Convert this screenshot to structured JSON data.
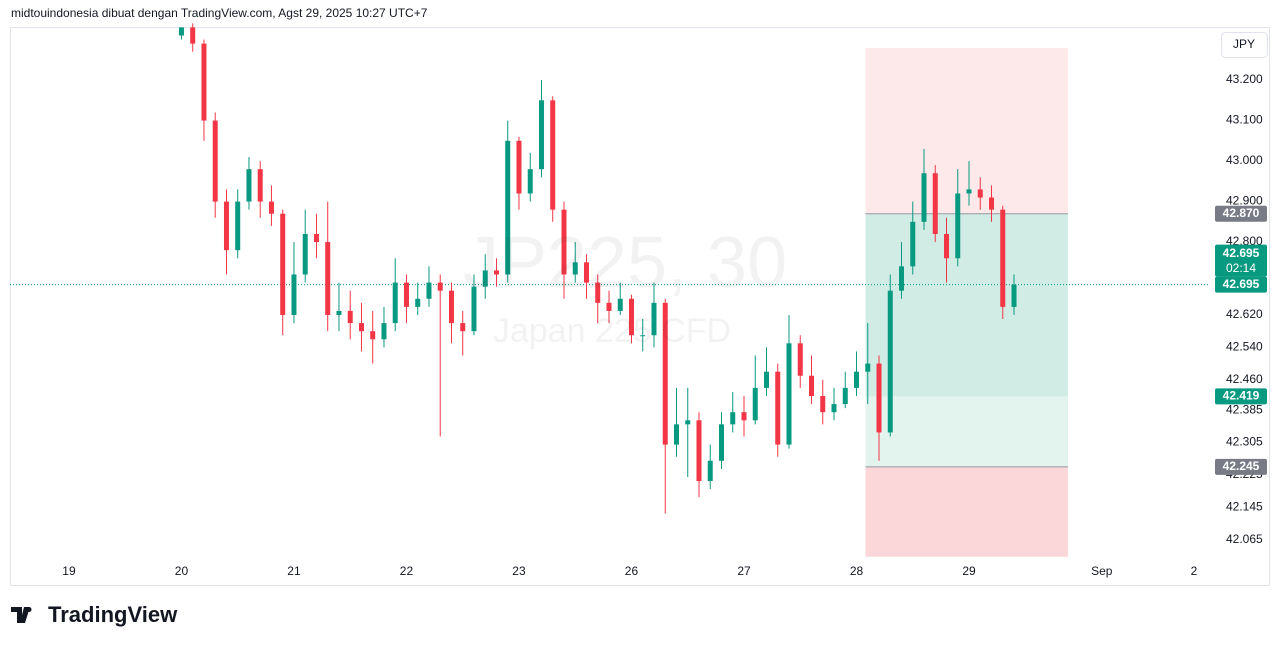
{
  "header": "midtouindonesia dibuat dengan TradingView.com, Agst 29, 2025 10:27 UTC+7",
  "brand": "TradingView",
  "chart_data": {
    "type": "candlestick",
    "currency": "JPY",
    "watermark": "JP225, 30",
    "watermark_subtitle": "Japan 225 CFD",
    "up_color": "#089981",
    "down_color": "#f23645",
    "xlim": [
      -0.524,
      10.142
    ],
    "ylim": [
      42.02,
      43.331
    ],
    "xticks": [
      {
        "value": 0,
        "label": "19"
      },
      {
        "value": 1,
        "label": "20"
      },
      {
        "value": 2,
        "label": "21"
      },
      {
        "value": 3,
        "label": "22"
      },
      {
        "value": 4,
        "label": "23"
      },
      {
        "value": 5,
        "label": "26"
      },
      {
        "value": 6,
        "label": "27"
      },
      {
        "value": 7,
        "label": "28"
      },
      {
        "value": 8,
        "label": "29"
      },
      {
        "value": 9.18,
        "label": "Sep"
      },
      {
        "value": 10,
        "label": "2"
      }
    ],
    "yticks": [
      {
        "value": 43.2,
        "label": "43.200"
      },
      {
        "value": 43.1,
        "label": "43.100"
      },
      {
        "value": 43.0,
        "label": "43.000"
      },
      {
        "value": 42.9,
        "label": "42.900"
      },
      {
        "value": 42.8,
        "label": "42.800"
      },
      {
        "value": 42.62,
        "label": "42.620"
      },
      {
        "value": 42.54,
        "label": "42.540"
      },
      {
        "value": 42.46,
        "label": "42.460"
      },
      {
        "value": 42.385,
        "label": "42.385"
      },
      {
        "value": 42.305,
        "label": "42.305"
      },
      {
        "value": 42.225,
        "label": "42.225"
      },
      {
        "value": 42.145,
        "label": "42.145"
      },
      {
        "value": 42.065,
        "label": "42.065"
      }
    ],
    "x": [
      1.0,
      1.1,
      1.2,
      1.3,
      1.4,
      1.5,
      1.6,
      1.7,
      1.8,
      1.9,
      2.0,
      2.1,
      2.2,
      2.3,
      2.4,
      2.5,
      2.6,
      2.7,
      2.8,
      2.9,
      3.0,
      3.1,
      3.2,
      3.3,
      3.4,
      3.5,
      3.6,
      3.7,
      3.8,
      3.9,
      4.0,
      4.1,
      4.2,
      4.3,
      4.4,
      4.5,
      4.6,
      4.7,
      4.8,
      4.9,
      5.0,
      5.1,
      5.2,
      5.3,
      5.4,
      5.5,
      5.6,
      5.7,
      5.8,
      5.9,
      6.0,
      6.1,
      6.2,
      6.3,
      6.4,
      6.5,
      6.6,
      6.7,
      6.8,
      6.9,
      7.0,
      7.1,
      7.2,
      7.3,
      7.4,
      7.5,
      7.6,
      7.7,
      7.8,
      7.9,
      8.0,
      8.1,
      8.2,
      8.3,
      8.4
    ],
    "open": [
      43.31,
      43.33,
      43.29,
      43.1,
      42.9,
      42.78,
      42.9,
      42.98,
      42.9,
      42.87,
      42.62,
      42.72,
      42.82,
      42.8,
      42.62,
      42.63,
      42.6,
      42.58,
      42.56,
      42.6,
      42.7,
      42.64,
      42.66,
      42.7,
      42.68,
      42.6,
      42.58,
      42.69,
      42.73,
      42.72,
      43.05,
      42.92,
      42.98,
      43.15,
      42.88,
      42.72,
      42.75,
      42.7,
      42.65,
      42.63,
      42.66,
      42.57,
      42.57,
      42.65,
      42.3,
      42.35,
      42.36,
      42.21,
      42.26,
      42.35,
      42.38,
      42.36,
      42.44,
      42.48,
      42.3,
      42.55,
      42.47,
      42.42,
      42.38,
      42.4,
      42.44,
      42.48,
      42.5,
      42.33,
      42.68,
      42.74,
      42.85,
      42.97,
      42.82,
      42.76,
      42.92,
      42.93,
      42.91,
      42.88,
      42.64
    ],
    "high": [
      43.33,
      43.34,
      43.3,
      43.12,
      42.93,
      42.93,
      43.01,
      43.0,
      42.94,
      42.88,
      42.8,
      42.88,
      42.87,
      42.9,
      42.7,
      42.68,
      42.65,
      42.63,
      42.64,
      42.76,
      42.72,
      42.7,
      42.74,
      42.72,
      42.7,
      42.63,
      42.72,
      42.77,
      42.76,
      43.1,
      43.06,
      43.02,
      43.2,
      43.16,
      42.9,
      42.8,
      42.77,
      42.72,
      42.68,
      42.7,
      42.67,
      42.61,
      42.7,
      42.66,
      42.44,
      42.44,
      42.38,
      42.3,
      42.38,
      42.43,
      42.42,
      42.52,
      42.54,
      42.5,
      42.62,
      42.57,
      42.52,
      42.46,
      42.44,
      42.48,
      42.53,
      42.6,
      42.52,
      42.72,
      42.8,
      42.9,
      43.03,
      42.99,
      42.86,
      42.98,
      43.0,
      42.96,
      42.94,
      42.89,
      42.72
    ],
    "low": [
      43.3,
      43.27,
      43.05,
      42.86,
      42.72,
      42.76,
      42.88,
      42.86,
      42.84,
      42.57,
      42.6,
      42.7,
      42.76,
      42.58,
      42.58,
      42.56,
      42.53,
      42.5,
      42.54,
      42.58,
      42.6,
      42.62,
      42.64,
      42.32,
      42.55,
      42.52,
      42.57,
      42.66,
      42.69,
      42.7,
      42.88,
      42.9,
      42.96,
      42.85,
      42.66,
      42.7,
      42.66,
      42.6,
      42.6,
      42.62,
      42.55,
      42.53,
      42.54,
      42.13,
      42.27,
      42.22,
      42.17,
      42.19,
      42.24,
      42.33,
      42.32,
      42.35,
      42.42,
      42.27,
      42.29,
      42.44,
      42.4,
      42.35,
      42.36,
      42.39,
      42.42,
      42.4,
      42.26,
      42.32,
      42.66,
      42.72,
      42.83,
      42.8,
      42.7,
      42.74,
      42.89,
      42.88,
      42.85,
      42.61,
      42.62
    ],
    "close": [
      43.33,
      43.29,
      43.1,
      42.9,
      42.78,
      42.9,
      42.98,
      42.9,
      42.87,
      42.62,
      42.72,
      42.82,
      42.8,
      42.62,
      42.63,
      42.6,
      42.58,
      42.56,
      42.6,
      42.7,
      42.64,
      42.66,
      42.7,
      42.68,
      42.6,
      42.58,
      42.69,
      42.73,
      42.72,
      43.05,
      42.92,
      42.98,
      43.15,
      42.88,
      42.72,
      42.75,
      42.7,
      42.65,
      42.63,
      42.66,
      42.57,
      42.57,
      42.65,
      42.3,
      42.35,
      42.36,
      42.21,
      42.26,
      42.35,
      42.38,
      42.36,
      42.44,
      42.48,
      42.3,
      42.55,
      42.47,
      42.42,
      42.38,
      42.4,
      42.44,
      42.48,
      42.5,
      42.33,
      42.68,
      42.74,
      42.85,
      42.97,
      42.82,
      42.76,
      42.92,
      42.93,
      42.91,
      42.88,
      42.64,
      42.695
    ],
    "zone_x": [
      7.08,
      8.88
    ],
    "zones": [
      {
        "from": 43.279,
        "to": 42.87,
        "color": "#fde9ea"
      },
      {
        "from": 42.87,
        "to": 42.245,
        "color": "#e3f4ef"
      },
      {
        "from": 42.87,
        "to": 42.419,
        "color": "#d1ece5"
      },
      {
        "from": 42.245,
        "to": 42.023,
        "color": "#fbd7da"
      }
    ],
    "zone_line_color": "#9598a1",
    "price_labels": [
      {
        "value": 42.87,
        "label": "42.870",
        "color": "#787b86"
      },
      {
        "value": 42.419,
        "label": "42.419",
        "color": "#089981"
      },
      {
        "value": 42.245,
        "label": "42.245",
        "color": "#787b86"
      }
    ],
    "last_price": {
      "value": 42.695,
      "label": "42.695",
      "countdown_price": "42.695",
      "countdown": "02:14",
      "color": "#089981"
    }
  }
}
